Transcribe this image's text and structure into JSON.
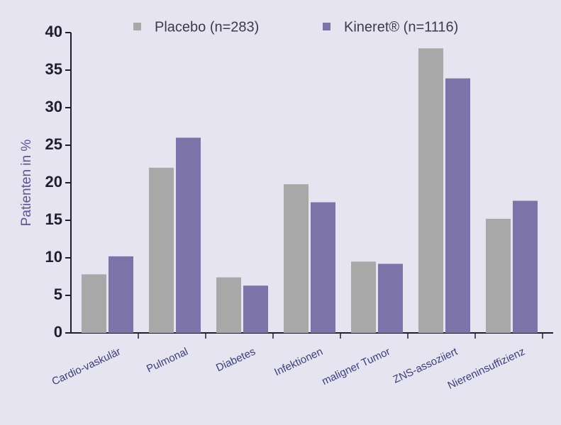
{
  "chart_data": {
    "type": "bar",
    "y_label": "Patienten in %",
    "categories": [
      "Cardio-vaskulär",
      "Pulmonal",
      "Diabetes",
      "Infektionen",
      "maligner Tumor",
      "ZNS-assoziiert",
      "Niereninsuffizienz"
    ],
    "series": [
      {
        "name": "Placebo (n=283)",
        "color": "#a9a8a9",
        "values": [
          7.8,
          22.0,
          7.4,
          19.8,
          9.5,
          37.9,
          15.2
        ]
      },
      {
        "name": "Kineret® (n=1116)",
        "color": "#7c74a9",
        "values": [
          10.2,
          26.0,
          6.3,
          17.4,
          9.2,
          33.9,
          17.6
        ]
      }
    ],
    "ylim": [
      0,
      40
    ],
    "yticks": [
      0,
      5,
      10,
      15,
      20,
      25,
      30,
      35,
      40
    ],
    "grid": false
  }
}
